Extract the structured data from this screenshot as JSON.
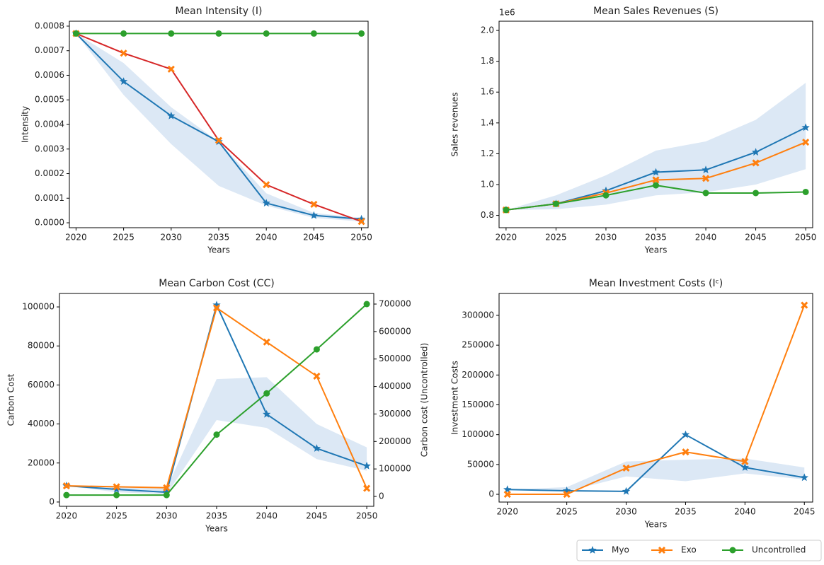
{
  "chart_data": [
    {
      "type": "line",
      "title": "Mean Intensity (I)",
      "xlabel": "Years",
      "ylabel": "Intensity",
      "x": [
        2020,
        2025,
        2030,
        2035,
        2040,
        2045,
        2050
      ],
      "xlim": [
        2019.3,
        2050.7
      ],
      "xticks": [
        2020,
        2025,
        2030,
        2035,
        2040,
        2045,
        2050
      ],
      "ylim": [
        -2e-05,
        0.00082
      ],
      "yticks": [
        {
          "value": 0,
          "label": "0.0000"
        },
        {
          "value": 0.0001,
          "label": "0.0001"
        },
        {
          "value": 0.0002,
          "label": "0.0002"
        },
        {
          "value": 0.0003,
          "label": "0.0003"
        },
        {
          "value": 0.0004,
          "label": "0.0004"
        },
        {
          "value": 0.0005,
          "label": "0.0005"
        },
        {
          "value": 0.0006,
          "label": "0.0006"
        },
        {
          "value": 0.0007,
          "label": "0.0007"
        },
        {
          "value": 0.0008,
          "label": "0.0008"
        }
      ],
      "band": {
        "color": "#dce8f5",
        "lower": [
          0.00077,
          0.00052,
          0.00032,
          0.00015,
          7e-05,
          2e-05,
          5e-06
        ],
        "upper": [
          0.00077,
          0.00065,
          0.00047,
          0.00033,
          0.00012,
          4e-05,
          2e-05
        ]
      },
      "series": [
        {
          "name": "Myo",
          "color": "#1f77b4",
          "marker": "star",
          "values": [
            0.00077,
            0.000575,
            0.000435,
            0.00033,
            8e-05,
            3e-05,
            1.5e-05
          ]
        },
        {
          "name": "Exo",
          "color": "#ff7f0e",
          "line_color": "#d62728",
          "marker": "x",
          "values": [
            0.00077,
            0.00069,
            0.000625,
            0.000335,
            0.000155,
            7.5e-05,
            5e-06
          ]
        },
        {
          "name": "Uncontrolled",
          "color": "#2ca02c",
          "marker": "o",
          "values": [
            0.00077,
            0.00077,
            0.00077,
            0.00077,
            0.00077,
            0.00077,
            0.00077
          ]
        }
      ]
    },
    {
      "type": "line",
      "title": "Mean Sales Revenues (S)",
      "xlabel": "Years",
      "ylabel": "Sales revenues",
      "offset_label": "1e6",
      "x": [
        2020,
        2025,
        2030,
        2035,
        2040,
        2045,
        2050
      ],
      "xlim": [
        2019.3,
        2050.7
      ],
      "xticks": [
        2020,
        2025,
        2030,
        2035,
        2040,
        2045,
        2050
      ],
      "ylim": [
        720000,
        2060000
      ],
      "yticks": [
        {
          "value": 800000,
          "label": "0.8"
        },
        {
          "value": 1000000,
          "label": "1.0"
        },
        {
          "value": 1200000,
          "label": "1.2"
        },
        {
          "value": 1400000,
          "label": "1.4"
        },
        {
          "value": 1600000,
          "label": "1.6"
        },
        {
          "value": 1800000,
          "label": "1.8"
        },
        {
          "value": 2000000,
          "label": "2.0"
        }
      ],
      "band": {
        "color": "#dce8f5",
        "lower": [
          835000,
          840000,
          870000,
          930000,
          950000,
          1000000,
          1100000
        ],
        "upper": [
          835000,
          930000,
          1060000,
          1220000,
          1280000,
          1420000,
          1660000
        ]
      },
      "series": [
        {
          "name": "Myo",
          "color": "#1f77b4",
          "marker": "star",
          "values": [
            835000,
            875000,
            960000,
            1080000,
            1095000,
            1210000,
            1370000
          ]
        },
        {
          "name": "Exo",
          "color": "#ff7f0e",
          "marker": "x",
          "values": [
            835000,
            875000,
            945000,
            1030000,
            1040000,
            1140000,
            1275000
          ]
        },
        {
          "name": "Uncontrolled",
          "color": "#2ca02c",
          "marker": "o",
          "values": [
            835000,
            875000,
            930000,
            995000,
            945000,
            945000,
            952000
          ]
        }
      ]
    },
    {
      "type": "line",
      "title": "Mean Carbon Cost (CC)",
      "xlabel": "Years",
      "ylabel": "Carbon Cost",
      "y2label": "Carbon cost (Uncontrolled)",
      "x": [
        2020,
        2025,
        2030,
        2035,
        2040,
        2045,
        2050
      ],
      "xlim": [
        2019.3,
        2050.7
      ],
      "xticks": [
        2020,
        2025,
        2030,
        2035,
        2040,
        2045,
        2050
      ],
      "ylim": [
        -2200,
        106900
      ],
      "yticks": [
        0,
        20000,
        40000,
        60000,
        80000,
        100000
      ],
      "y2lim": [
        -36000,
        738600
      ],
      "y2ticks": [
        0,
        100000,
        200000,
        300000,
        400000,
        500000,
        600000,
        700000
      ],
      "band": {
        "color": "#dce8f5",
        "lower": [
          8300,
          5000,
          4000,
          42000,
          38000,
          22000,
          16000
        ],
        "upper": [
          8300,
          8000,
          7000,
          63000,
          64000,
          40000,
          28000
        ]
      },
      "series": [
        {
          "name": "Myo",
          "color": "#1f77b4",
          "marker": "star",
          "values": [
            8300,
            6500,
            5000,
            101000,
            45000,
            27500,
            18500
          ]
        },
        {
          "name": "Exo",
          "color": "#ff7f0e",
          "marker": "x",
          "values": [
            8300,
            7800,
            7300,
            99500,
            82000,
            64500,
            7000
          ]
        },
        {
          "name": "Uncontrolled",
          "color": "#2ca02c",
          "marker": "o",
          "axis": "y2",
          "values": [
            5000,
            5000,
            5000,
            225000,
            375000,
            535000,
            700000
          ]
        }
      ]
    },
    {
      "type": "line",
      "title": "Mean Investment Costs (Iᶜ)",
      "xlabel": "Years",
      "ylabel": "Investment Costs",
      "x": [
        2020,
        2025,
        2030,
        2035,
        2040,
        2045
      ],
      "xlim": [
        2019.3,
        2045.7
      ],
      "xticks": [
        2020,
        2025,
        2030,
        2035,
        2040,
        2045
      ],
      "ylim": [
        -13000,
        336700
      ],
      "yticks": [
        0,
        50000,
        100000,
        150000,
        200000,
        250000,
        300000
      ],
      "band": {
        "color": "#dce8f5",
        "lower": [
          8000,
          5000,
          30000,
          22000,
          35000,
          25000
        ],
        "upper": [
          8000,
          12000,
          55000,
          58000,
          60000,
          45000
        ]
      },
      "series": [
        {
          "name": "Myo",
          "color": "#1f77b4",
          "marker": "star",
          "values": [
            8000,
            6000,
            5000,
            100000,
            45000,
            28000
          ]
        },
        {
          "name": "Exo",
          "color": "#ff7f0e",
          "marker": "x",
          "values": [
            0,
            0,
            44000,
            71000,
            55000,
            317000
          ]
        }
      ]
    }
  ]
}
